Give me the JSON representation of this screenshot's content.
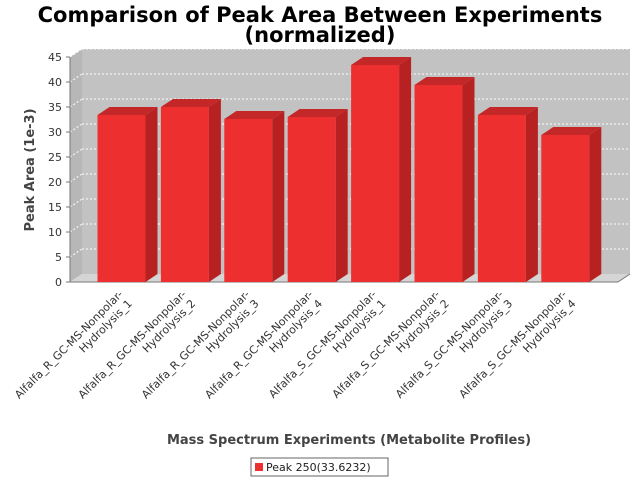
{
  "chart_data": {
    "type": "bar",
    "title": "Comparison of Peak Area Between Experiments (normalized)",
    "title_lines": [
      "Comparison of Peak Area Between Experiments",
      "(normalized)"
    ],
    "xlabel": "Mass Spectrum Experiments (Metabolite Profiles)",
    "ylabel": "Peak Area (1e-3)",
    "ylim": [
      0,
      45
    ],
    "yticks": [
      0,
      5,
      10,
      15,
      20,
      25,
      30,
      35,
      40,
      45
    ],
    "grid": true,
    "three_d": true,
    "legend_position": "bottom-center",
    "categories": [
      {
        "label_line1": "Alfalfa_R_GC-MS-Nonpolar-",
        "label_line2": "Hydrolysis_1"
      },
      {
        "label_line1": "Alfalfa_R_GC-MS-Nonpolar-",
        "label_line2": "Hydrolysis_2"
      },
      {
        "label_line1": "Alfalfa_R_GC-MS-Nonpolar-",
        "label_line2": "Hydrolysis_3"
      },
      {
        "label_line1": "Alfalfa_R_GC-MS-Nonpolar-",
        "label_line2": "Hydrolysis_4"
      },
      {
        "label_line1": "Alfalfa_S_GC-MS-Nonpolar-",
        "label_line2": "Hydrolysis_1"
      },
      {
        "label_line1": "Alfalfa_S_GC-MS-Nonpolar-",
        "label_line2": "Hydrolysis_2"
      },
      {
        "label_line1": "Alfalfa_S_GC-MS-Nonpolar-",
        "label_line2": "Hydrolysis_3"
      },
      {
        "label_line1": "Alfalfa_S_GC-MS-Nonpolar-",
        "label_line2": "Hydrolysis_4"
      }
    ],
    "series": [
      {
        "name": "Peak 250(33.6232)",
        "color": "#ee2f2f",
        "values": [
          33.4,
          35.0,
          32.6,
          33.0,
          43.4,
          39.4,
          33.4,
          29.4
        ]
      }
    ],
    "colors": {
      "plot_background": "#c2c2c2",
      "plot_floor": "#d5d5d5",
      "plot_side": "#b7b7b7",
      "bar_face": "#ee2f2f",
      "bar_top": "#c42727",
      "bar_side": "#b82121",
      "grid": "#ffffff",
      "axis_text": "#333333",
      "title_text": "#000000"
    }
  }
}
